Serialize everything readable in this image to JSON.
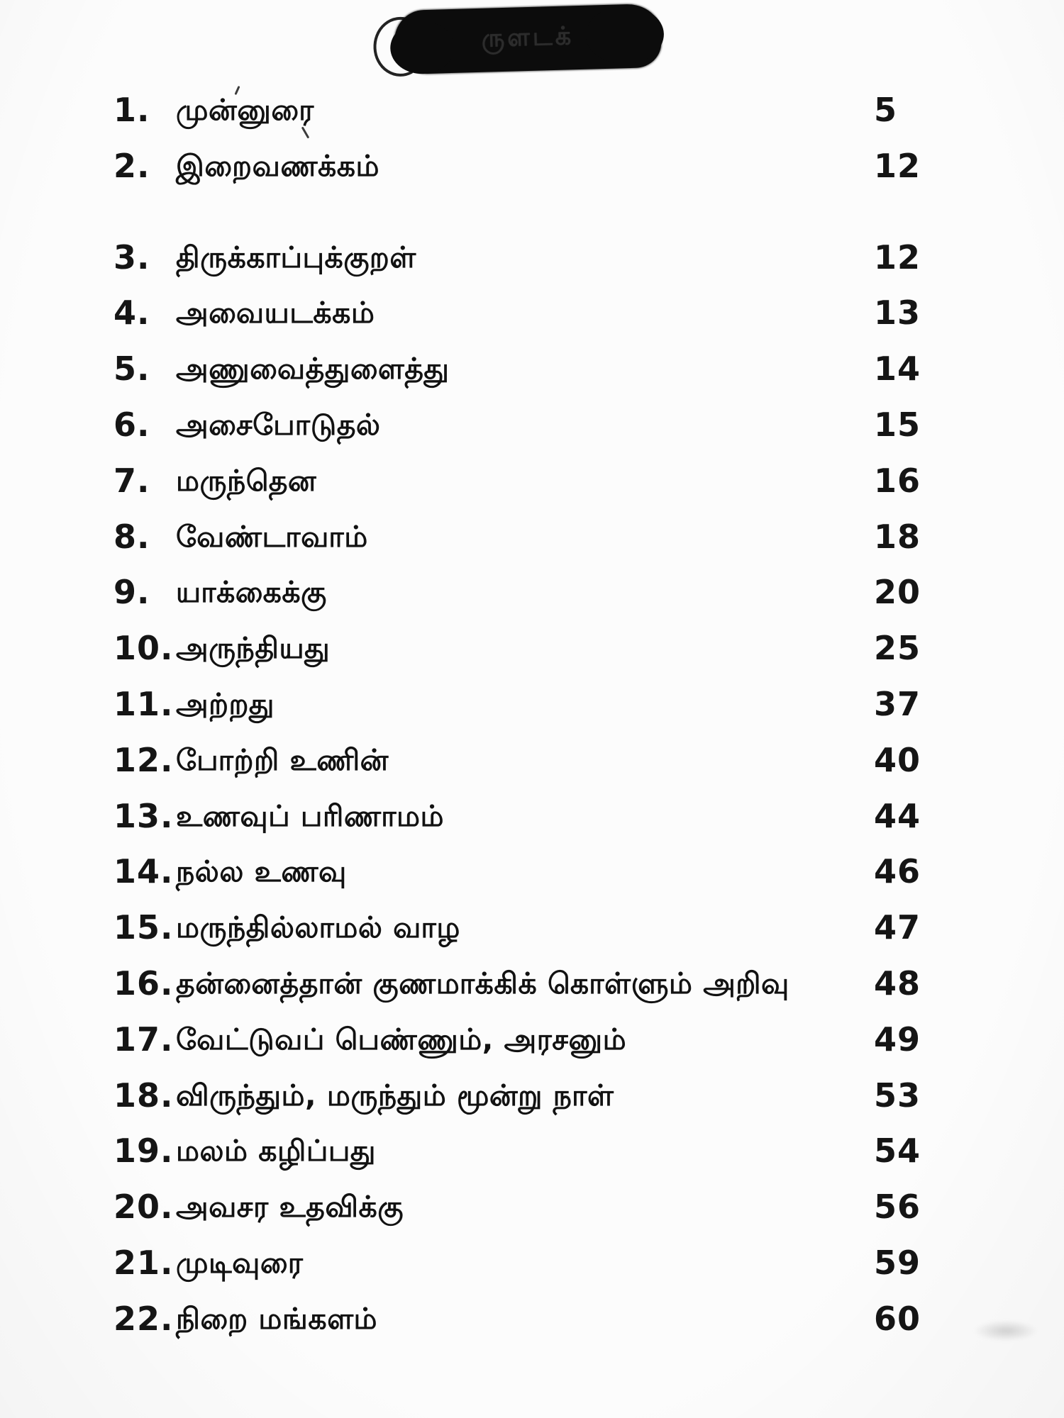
{
  "page": {
    "background_color": "#fcfcfc",
    "ink_color": "#141414",
    "stamp_color": "#0c0c0c"
  },
  "header": {
    "stamp": "redacted-title-stamp",
    "obscured_text": "ருளடக்"
  },
  "toc": {
    "entries": [
      {
        "number": "1.",
        "title": "முன்னுரை",
        "page": "5"
      },
      {
        "number": "2.",
        "title": "இறைவணக்கம்",
        "page": "12"
      },
      {
        "number": "3.",
        "title": "திருக்காப்புக்குறள்",
        "page": "12"
      },
      {
        "number": "4.",
        "title": "அவையடக்கம்",
        "page": "13"
      },
      {
        "number": "5.",
        "title": "அணுவைத்துளைத்து",
        "page": "14"
      },
      {
        "number": "6.",
        "title": "அசைபோடுதல்",
        "page": "15"
      },
      {
        "number": "7.",
        "title": "மருந்தென",
        "page": "16"
      },
      {
        "number": "8.",
        "title": "வேண்டாவாம்",
        "page": "18"
      },
      {
        "number": "9.",
        "title": "யாக்கைக்கு",
        "page": "20"
      },
      {
        "number": "10.",
        "title": "அருந்தியது",
        "page": "25"
      },
      {
        "number": "11.",
        "title": "அற்றது",
        "page": "37"
      },
      {
        "number": "12.",
        "title": "போற்றி உணின்",
        "page": "40"
      },
      {
        "number": "13.",
        "title": "உணவுப் பரிணாமம்",
        "page": "44"
      },
      {
        "number": "14.",
        "title": "நல்ல உணவு",
        "page": "46"
      },
      {
        "number": "15.",
        "title": "மருந்தில்லாமல் வாழ",
        "page": "47"
      },
      {
        "number": "16.",
        "title": "தன்னைத்தான் குணமாக்கிக் கொள்ளும் அறிவு",
        "page": "48"
      },
      {
        "number": "17.",
        "title": "வேட்டுவப் பெண்ணும், அரசனும்",
        "page": "49"
      },
      {
        "number": "18.",
        "title": "விருந்தும், மருந்தும் மூன்று நாள்",
        "page": "53"
      },
      {
        "number": "19.",
        "title": "மலம் கழிப்பது",
        "page": "54"
      },
      {
        "number": "20.",
        "title": "அவசர உதவிக்கு",
        "page": "56"
      },
      {
        "number": "21.",
        "title": "முடிவுரை",
        "page": "59"
      },
      {
        "number": "22.",
        "title": "நிறை மங்களம்",
        "page": "60"
      }
    ]
  }
}
